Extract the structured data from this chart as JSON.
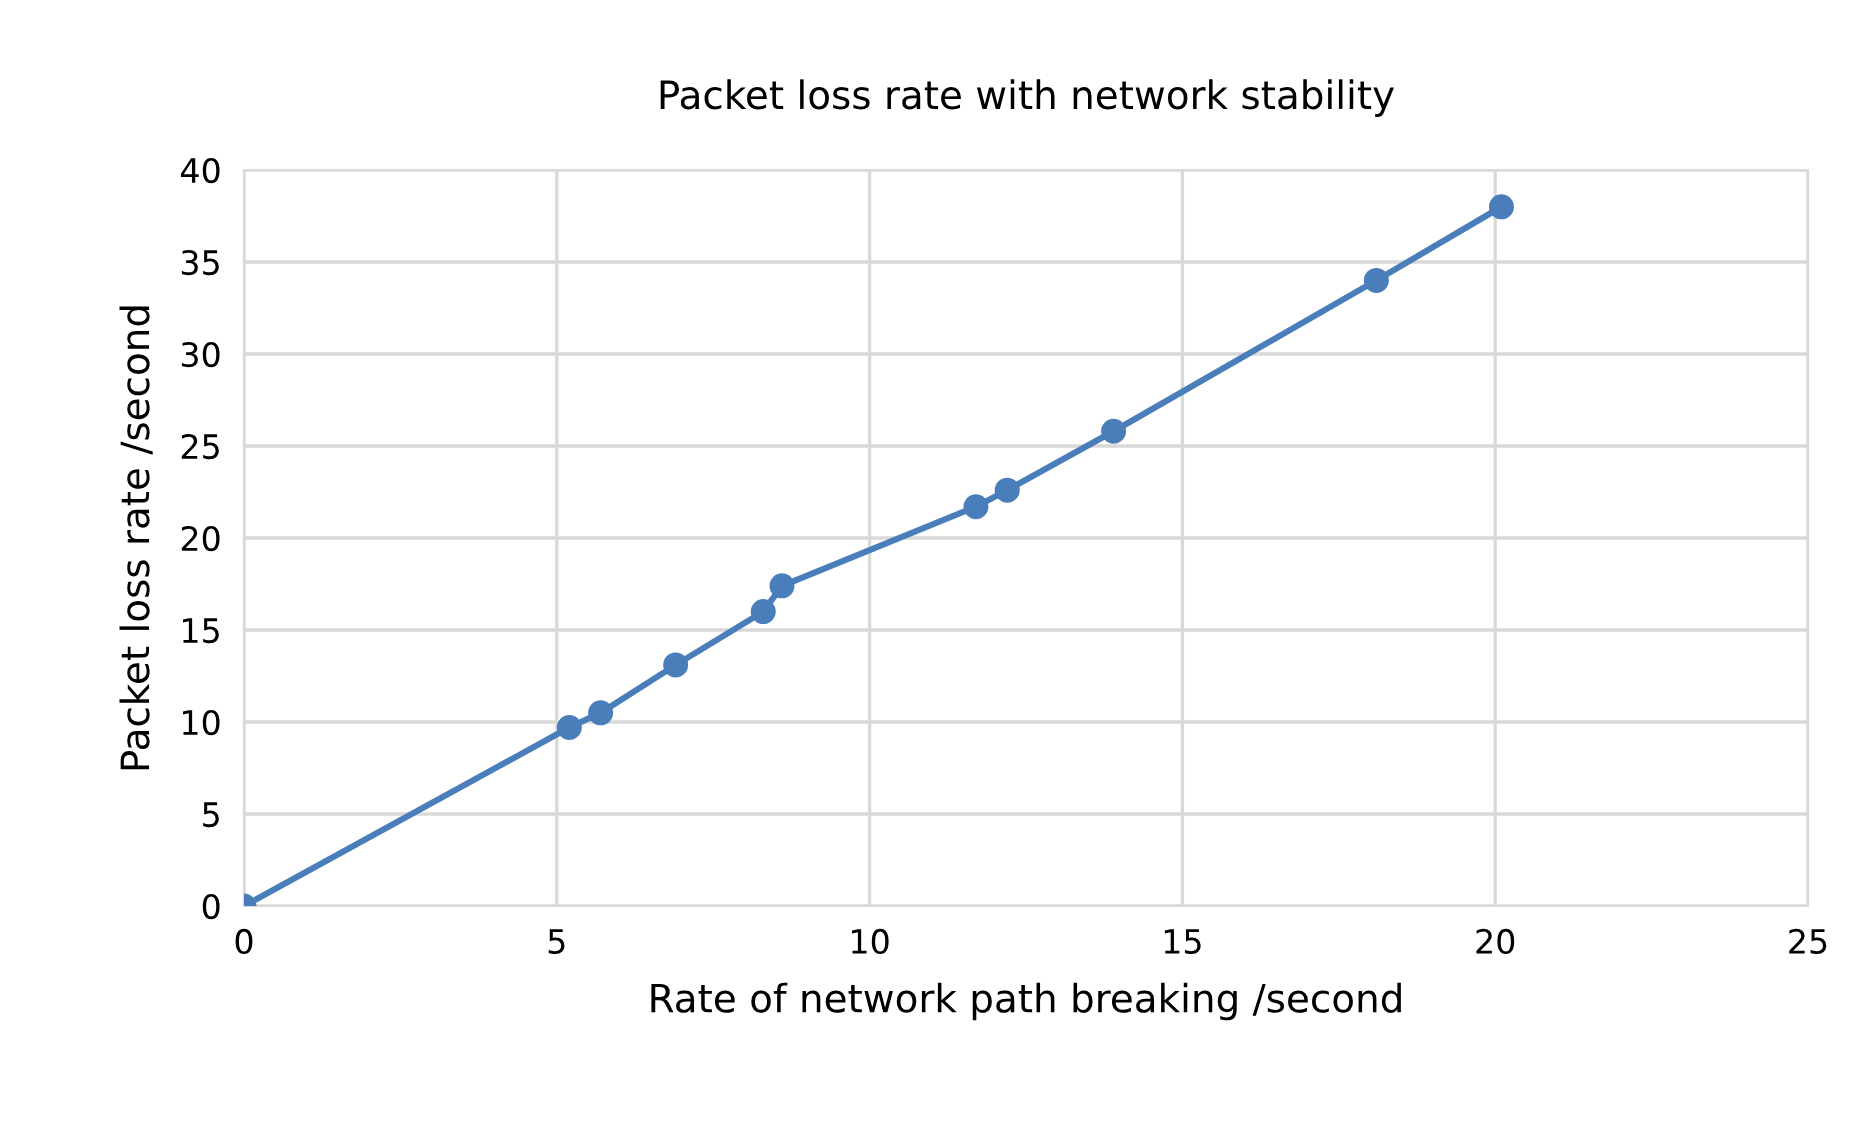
{
  "chart_data": {
    "type": "line",
    "title": "Packet loss rate with network stability",
    "xlabel": "Rate of network path breaking /second",
    "ylabel": "Packet loss rate /second",
    "x": [
      0,
      5.2,
      5.7,
      6.9,
      8.3,
      8.6,
      11.7,
      12.2,
      13.9,
      18.1,
      20.1
    ],
    "series": [
      {
        "color": "#4a7ebb",
        "values": [
          0,
          9.7,
          10.5,
          13.1,
          16.0,
          17.4,
          21.7,
          22.6,
          25.8,
          34.0,
          38.0
        ]
      }
    ],
    "xlim": [
      0,
      25
    ],
    "xticks": [
      0,
      5,
      10,
      15,
      20,
      25
    ],
    "ylim": [
      0,
      40
    ],
    "yticks": [
      0,
      5,
      10,
      15,
      20,
      25,
      30,
      35,
      40
    ],
    "grid": true,
    "marker": "circle",
    "line_style": "solid"
  }
}
